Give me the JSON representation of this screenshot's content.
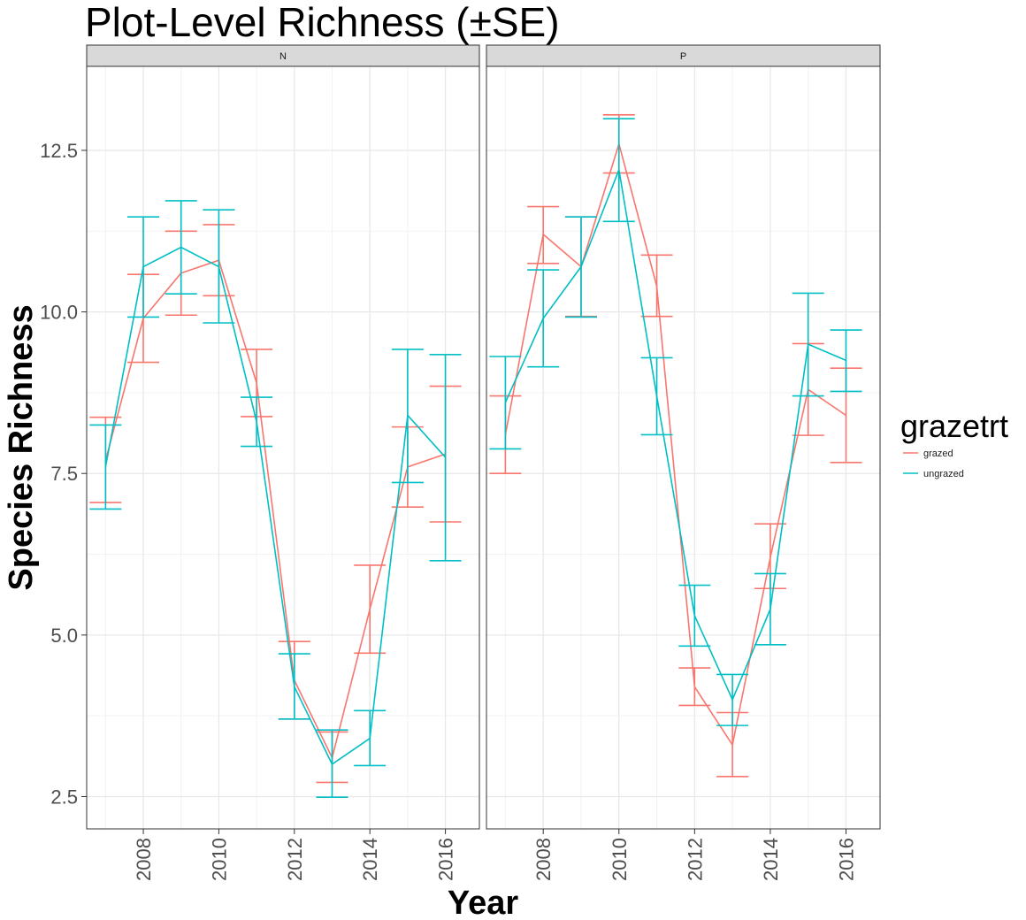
{
  "title": "Plot-Level Richness (±SE)",
  "chart_data": {
    "type": "line",
    "title": "Plot-Level Richness (±SE)",
    "xlabel": "Year",
    "ylabel": "Species Richness",
    "xlim": [
      2006.5,
      2016.9
    ],
    "ylim": [
      2.0,
      13.8
    ],
    "x_ticks": [
      2008,
      2010,
      2012,
      2014,
      2016
    ],
    "y_ticks": [
      2.5,
      5.0,
      7.5,
      10.0,
      12.5
    ],
    "y_tick_labels": [
      "2.5",
      "5.0",
      "7.5",
      "10.0",
      "12.5"
    ],
    "grid": true,
    "legend": {
      "title": "grazetrt",
      "position": "right",
      "entries": [
        {
          "label": "grazed",
          "color": "#F8766D"
        },
        {
          "label": "ungrazed",
          "color": "#00BFC4"
        }
      ]
    },
    "facets": [
      {
        "label": "N",
        "series": [
          {
            "name": "grazed",
            "color": "#F8766D",
            "x": [
              2007,
              2008,
              2009,
              2010,
              2011,
              2012,
              2013,
              2014,
              2015,
              2016
            ],
            "y": [
              7.7,
              9.9,
              10.6,
              10.8,
              8.9,
              4.3,
              3.1,
              5.4,
              7.6,
              7.8
            ],
            "se_low": [
              7.05,
              9.22,
              9.95,
              10.25,
              8.38,
              3.7,
              2.72,
              4.72,
              6.98,
              6.75
            ],
            "se_high": [
              8.37,
              10.58,
              11.25,
              11.35,
              9.42,
              4.9,
              3.5,
              6.08,
              8.22,
              8.85
            ]
          },
          {
            "name": "ungrazed",
            "color": "#00BFC4",
            "x": [
              2007,
              2008,
              2009,
              2010,
              2011,
              2012,
              2013,
              2014,
              2015,
              2016
            ],
            "y": [
              7.6,
              10.7,
              11.0,
              10.7,
              8.3,
              4.2,
              3.0,
              3.4,
              8.4,
              7.75
            ],
            "se_low": [
              6.95,
              9.92,
              10.28,
              9.83,
              7.92,
              3.7,
              2.49,
              2.98,
              7.36,
              6.15
            ],
            "se_high": [
              8.25,
              11.47,
              11.72,
              11.58,
              8.68,
              4.71,
              3.53,
              3.83,
              9.42,
              9.34
            ]
          }
        ]
      },
      {
        "label": "P",
        "series": [
          {
            "name": "grazed",
            "color": "#F8766D",
            "x": [
              2007,
              2008,
              2009,
              2010,
              2011,
              2012,
              2013,
              2014,
              2015,
              2016
            ],
            "y": [
              8.1,
              11.2,
              10.7,
              12.6,
              10.4,
              4.2,
              3.3,
              6.2,
              8.8,
              8.4
            ],
            "se_low": [
              7.5,
              10.75,
              9.93,
              12.15,
              9.93,
              3.91,
              2.81,
              5.72,
              8.09,
              7.67
            ],
            "se_high": [
              8.7,
              11.63,
              11.47,
              13.05,
              10.88,
              4.49,
              3.8,
              6.72,
              9.51,
              9.13
            ]
          },
          {
            "name": "ungrazed",
            "color": "#00BFC4",
            "x": [
              2007,
              2008,
              2009,
              2010,
              2011,
              2012,
              2013,
              2014,
              2015,
              2016
            ],
            "y": [
              8.6,
              9.9,
              10.7,
              12.2,
              8.7,
              5.3,
              4.0,
              5.4,
              9.5,
              9.25
            ],
            "se_low": [
              7.88,
              9.15,
              9.92,
              11.4,
              8.1,
              4.83,
              3.6,
              4.85,
              8.7,
              8.77
            ],
            "se_high": [
              9.31,
              10.65,
              11.47,
              12.99,
              9.29,
              5.77,
              4.39,
              5.95,
              10.29,
              9.72
            ]
          }
        ]
      }
    ]
  }
}
